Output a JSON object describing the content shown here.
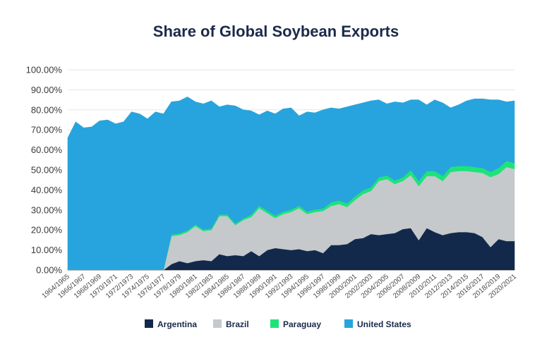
{
  "chart_data": {
    "type": "area",
    "stacked": true,
    "title": "Share of Global Soybean Exports",
    "xlabel": "",
    "ylabel": "",
    "ylim": [
      0,
      100
    ],
    "y_tick_labels": [
      "0.00%",
      "10.00%",
      "20.00%",
      "30.00%",
      "40.00%",
      "50.00%",
      "60.00%",
      "70.00%",
      "80.00%",
      "90.00%",
      "100.00%"
    ],
    "x_start_years": [
      1964,
      1965,
      1966,
      1967,
      1968,
      1969,
      1970,
      1971,
      1972,
      1973,
      1974,
      1975,
      1976,
      1977,
      1978,
      1979,
      1980,
      1981,
      1982,
      1983,
      1984,
      1985,
      1986,
      1987,
      1988,
      1989,
      1990,
      1991,
      1992,
      1993,
      1994,
      1995,
      1996,
      1997,
      1998,
      1999,
      2000,
      2001,
      2002,
      2003,
      2004,
      2005,
      2006,
      2007,
      2008,
      2009,
      2010,
      2011,
      2012,
      2013,
      2014,
      2015,
      2016,
      2017,
      2018,
      2019,
      2020
    ],
    "x_tick_labels": [
      "1964/1965",
      "1966/1967",
      "1968/1969",
      "1970/1971",
      "1972/1973",
      "1974/1975",
      "1976/1977",
      "1978/1979",
      "1980/1981",
      "1982/1983",
      "1984/1985",
      "1986/1987",
      "1988/1989",
      "1990/1991",
      "1992/1993",
      "1994/1995",
      "1996/1997",
      "1998/1999",
      "2000/2001",
      "2002/2003",
      "2004/2005",
      "2006/2007",
      "2008/2009",
      "2010/2011",
      "2012/2013",
      "2014/2015",
      "2016/2017",
      "2018/2019",
      "2020/2021"
    ],
    "grid": true,
    "legend": "bottom",
    "series": [
      {
        "name": "Argentina",
        "color": "#13294b",
        "values": [
          0,
          0,
          0,
          0,
          0,
          0,
          0,
          0,
          0,
          0,
          0,
          0,
          0,
          3,
          4.5,
          3.5,
          4.5,
          5,
          4.5,
          8,
          7,
          7.5,
          7,
          9.5,
          7,
          10,
          11,
          10.5,
          10,
          10.5,
          9.5,
          10,
          8.5,
          12.5,
          12.5,
          13,
          15.5,
          16,
          18,
          17.5,
          18,
          18.5,
          20.5,
          21,
          15,
          21,
          19,
          17.5,
          18.5,
          19,
          19,
          18.5,
          16.5,
          11.5,
          15.5,
          14.5,
          14.5
        ]
      },
      {
        "name": "Brazil",
        "color": "#c5c9cc",
        "values": [
          0,
          0,
          0,
          0,
          0,
          0,
          0,
          0,
          0,
          0,
          0,
          0,
          0,
          14,
          13,
          15.5,
          17.5,
          14.5,
          15.5,
          19,
          20,
          15,
          18,
          17,
          24,
          18.5,
          15,
          17.5,
          19,
          20.5,
          18.5,
          19,
          21,
          19.5,
          20.5,
          18.5,
          19.5,
          22,
          21.5,
          27,
          27.5,
          24.5,
          24,
          26.5,
          27,
          26,
          28,
          27,
          30.5,
          30.5,
          30.5,
          30.5,
          32,
          35,
          32.5,
          37,
          36
        ]
      },
      {
        "name": "Paraguay",
        "color": "#1ee37a",
        "values": [
          0,
          0,
          0,
          0,
          0,
          0,
          0,
          0.2,
          0.2,
          0.2,
          0.2,
          0.2,
          0.2,
          0.8,
          0.8,
          0.8,
          0.8,
          0.8,
          0.8,
          0.8,
          0.8,
          0.8,
          0.8,
          1.2,
          1.2,
          1.2,
          1.2,
          1.2,
          1.2,
          1.2,
          1.2,
          1.2,
          1.2,
          1.8,
          1.8,
          1.8,
          1.8,
          1.8,
          1.8,
          1.8,
          1.8,
          1.8,
          1.8,
          2.5,
          2.5,
          2.5,
          2.5,
          2.5,
          2.5,
          2.5,
          2.5,
          2.5,
          2.5,
          2.5,
          3,
          3,
          3
        ]
      },
      {
        "name": "United States",
        "color": "#27a4dd",
        "values": [
          66,
          74,
          71,
          71.5,
          74.5,
          75,
          73,
          73.8,
          78.8,
          77.8,
          75.3,
          78.8,
          77.8,
          66.2,
          66.2,
          66.7,
          61.2,
          62.7,
          63.7,
          53.7,
          54.7,
          58.7,
          54.2,
          51.8,
          45.3,
          49.8,
          50.8,
          51.3,
          50.8,
          44.8,
          49.8,
          48.3,
          49.3,
          47.2,
          45.7,
          48.2,
          45.7,
          43.7,
          43.2,
          38.7,
          35.7,
          39.2,
          37.2,
          35,
          40.5,
          33,
          35.5,
          36.5,
          29.5,
          30.5,
          32.5,
          34,
          34.5,
          36,
          34,
          29.5,
          31
        ]
      }
    ]
  }
}
